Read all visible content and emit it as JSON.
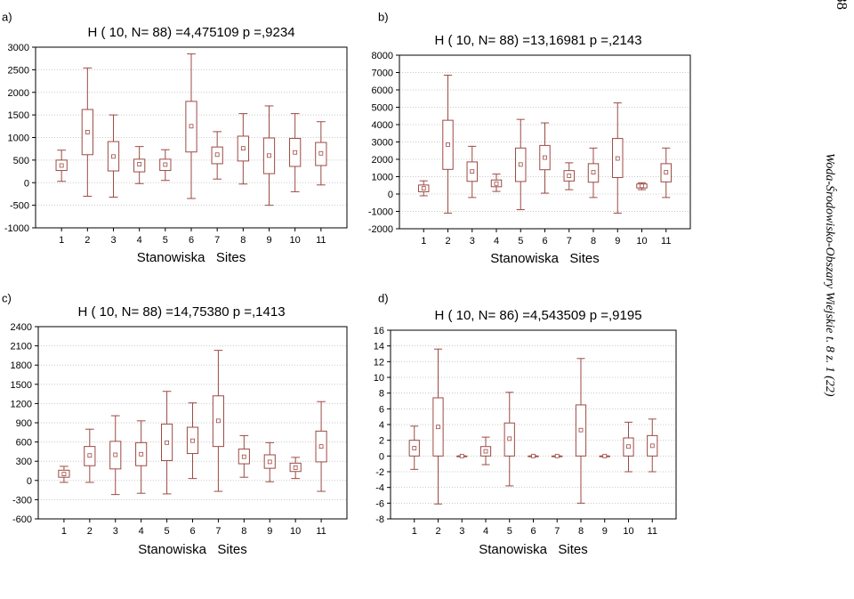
{
  "journal": {
    "page_number": "88",
    "running_title": "Woda-Środowisko-Obszary Wiejskie t. 8 z. 1 (22)"
  },
  "style": {
    "box_color": "#9c4a43",
    "grid_color": "#c8c8c8",
    "text_color": "#000000"
  },
  "chart_data": [
    {
      "panel": "a)",
      "type": "box",
      "title": "H ( 10, N= 88) =4,475109 p =,9234",
      "xlabel": "Stanowiska   Sites",
      "categories": [
        "1",
        "2",
        "3",
        "4",
        "5",
        "6",
        "7",
        "8",
        "9",
        "10",
        "11"
      ],
      "ylim": [
        -1000,
        3000
      ],
      "yticks": [
        -1000,
        -500,
        0,
        500,
        1000,
        1500,
        2000,
        2500,
        3000
      ],
      "grid": true,
      "boxes": [
        {
          "min": 30,
          "q1": 270,
          "median": 380,
          "q3": 500,
          "max": 720
        },
        {
          "min": -300,
          "q1": 620,
          "median": 1120,
          "q3": 1620,
          "max": 2540
        },
        {
          "min": -320,
          "q1": 260,
          "median": 580,
          "q3": 910,
          "max": 1500
        },
        {
          "min": -20,
          "q1": 240,
          "median": 410,
          "q3": 520,
          "max": 800
        },
        {
          "min": 50,
          "q1": 270,
          "median": 400,
          "q3": 520,
          "max": 730
        },
        {
          "min": -350,
          "q1": 680,
          "median": 1250,
          "q3": 1800,
          "max": 2850
        },
        {
          "min": 80,
          "q1": 420,
          "median": 620,
          "q3": 790,
          "max": 1130
        },
        {
          "min": -30,
          "q1": 480,
          "median": 760,
          "q3": 1030,
          "max": 1530
        },
        {
          "min": -500,
          "q1": 200,
          "median": 600,
          "q3": 990,
          "max": 1700
        },
        {
          "min": -200,
          "q1": 360,
          "median": 670,
          "q3": 980,
          "max": 1530
        },
        {
          "min": -50,
          "q1": 380,
          "median": 650,
          "q3": 890,
          "max": 1350
        }
      ]
    },
    {
      "panel": "b)",
      "type": "box",
      "title": "H ( 10, N= 88) =13,16981 p =,2143",
      "xlabel": "Stanowiska   Sites",
      "categories": [
        "1",
        "2",
        "3",
        "4",
        "5",
        "6",
        "7",
        "8",
        "9",
        "10",
        "11"
      ],
      "ylim": [
        -2000,
        8000
      ],
      "yticks": [
        -2000,
        -1000,
        0,
        1000,
        2000,
        3000,
        4000,
        5000,
        6000,
        7000,
        8000
      ],
      "grid": true,
      "boxes": [
        {
          "min": -100,
          "q1": 130,
          "median": 330,
          "q3": 520,
          "max": 760
        },
        {
          "min": -1100,
          "q1": 1420,
          "median": 2850,
          "q3": 4250,
          "max": 6850
        },
        {
          "min": -200,
          "q1": 730,
          "median": 1300,
          "q3": 1850,
          "max": 2750
        },
        {
          "min": 150,
          "q1": 420,
          "median": 600,
          "q3": 810,
          "max": 1150
        },
        {
          "min": -900,
          "q1": 720,
          "median": 1700,
          "q3": 2650,
          "max": 4300
        },
        {
          "min": 50,
          "q1": 1400,
          "median": 2100,
          "q3": 2800,
          "max": 4100
        },
        {
          "min": 250,
          "q1": 750,
          "median": 1050,
          "q3": 1350,
          "max": 1800
        },
        {
          "min": -200,
          "q1": 680,
          "median": 1250,
          "q3": 1750,
          "max": 2650
        },
        {
          "min": -1100,
          "q1": 950,
          "median": 2050,
          "q3": 3200,
          "max": 5250
        },
        {
          "min": 250,
          "q1": 350,
          "median": 470,
          "q3": 580,
          "max": 650
        },
        {
          "min": -200,
          "q1": 700,
          "median": 1250,
          "q3": 1750,
          "max": 2650
        }
      ]
    },
    {
      "panel": "c)",
      "type": "box",
      "title": "H ( 10, N= 88) =14,75380 p =,1413",
      "xlabel": "Stanowiska   Sites",
      "categories": [
        "1",
        "2",
        "3",
        "4",
        "5",
        "6",
        "7",
        "8",
        "9",
        "10",
        "11"
      ],
      "ylim": [
        -600,
        2400
      ],
      "yticks": [
        -600,
        -300,
        0,
        300,
        600,
        900,
        1200,
        1500,
        1800,
        2100,
        2400
      ],
      "grid": true,
      "boxes": [
        {
          "min": -30,
          "q1": 50,
          "median": 100,
          "q3": 160,
          "max": 220
        },
        {
          "min": -30,
          "q1": 230,
          "median": 390,
          "q3": 530,
          "max": 800
        },
        {
          "min": -220,
          "q1": 180,
          "median": 400,
          "q3": 610,
          "max": 1010
        },
        {
          "min": -200,
          "q1": 230,
          "median": 410,
          "q3": 590,
          "max": 930
        },
        {
          "min": -210,
          "q1": 310,
          "median": 590,
          "q3": 880,
          "max": 1390
        },
        {
          "min": 30,
          "q1": 420,
          "median": 620,
          "q3": 830,
          "max": 1210
        },
        {
          "min": -170,
          "q1": 530,
          "median": 930,
          "q3": 1320,
          "max": 2030
        },
        {
          "min": 50,
          "q1": 260,
          "median": 370,
          "q3": 490,
          "max": 700
        },
        {
          "min": -20,
          "q1": 190,
          "median": 290,
          "q3": 400,
          "max": 590
        },
        {
          "min": 30,
          "q1": 140,
          "median": 200,
          "q3": 270,
          "max": 360
        },
        {
          "min": -170,
          "q1": 290,
          "median": 530,
          "q3": 770,
          "max": 1230
        }
      ]
    },
    {
      "panel": "d)",
      "type": "box",
      "title": "H ( 10, N= 86) =4,543509 p =,9195",
      "xlabel": "Stanowiska   Sites",
      "categories": [
        "1",
        "2",
        "3",
        "4",
        "5",
        "6",
        "7",
        "8",
        "9",
        "10",
        "11"
      ],
      "ylim": [
        -8,
        16
      ],
      "yticks": [
        -8,
        -6,
        -4,
        -2,
        0,
        2,
        4,
        6,
        8,
        10,
        12,
        14,
        16
      ],
      "grid": true,
      "boxes": [
        {
          "min": -1.7,
          "q1": 0,
          "median": 1.0,
          "q3": 2.0,
          "max": 3.8
        },
        {
          "min": -6.1,
          "q1": 0,
          "median": 3.7,
          "q3": 7.4,
          "max": 13.6
        },
        {
          "min": 0,
          "q1": 0,
          "median": 0,
          "q3": 0,
          "max": 0
        },
        {
          "min": -1.1,
          "q1": 0,
          "median": 0.6,
          "q3": 1.2,
          "max": 2.4
        },
        {
          "min": -3.8,
          "q1": 0,
          "median": 2.2,
          "q3": 4.2,
          "max": 8.1
        },
        {
          "min": 0,
          "q1": 0,
          "median": 0,
          "q3": 0,
          "max": 0
        },
        {
          "min": 0,
          "q1": 0,
          "median": 0,
          "q3": 0,
          "max": 0
        },
        {
          "min": -6.0,
          "q1": 0,
          "median": 3.3,
          "q3": 6.5,
          "max": 12.4
        },
        {
          "min": 0,
          "q1": 0,
          "median": 0,
          "q3": 0,
          "max": 0
        },
        {
          "min": -2.0,
          "q1": 0,
          "median": 1.2,
          "q3": 2.3,
          "max": 4.3
        },
        {
          "min": -2.0,
          "q1": 0,
          "median": 1.3,
          "q3": 2.6,
          "max": 4.7
        }
      ]
    }
  ]
}
